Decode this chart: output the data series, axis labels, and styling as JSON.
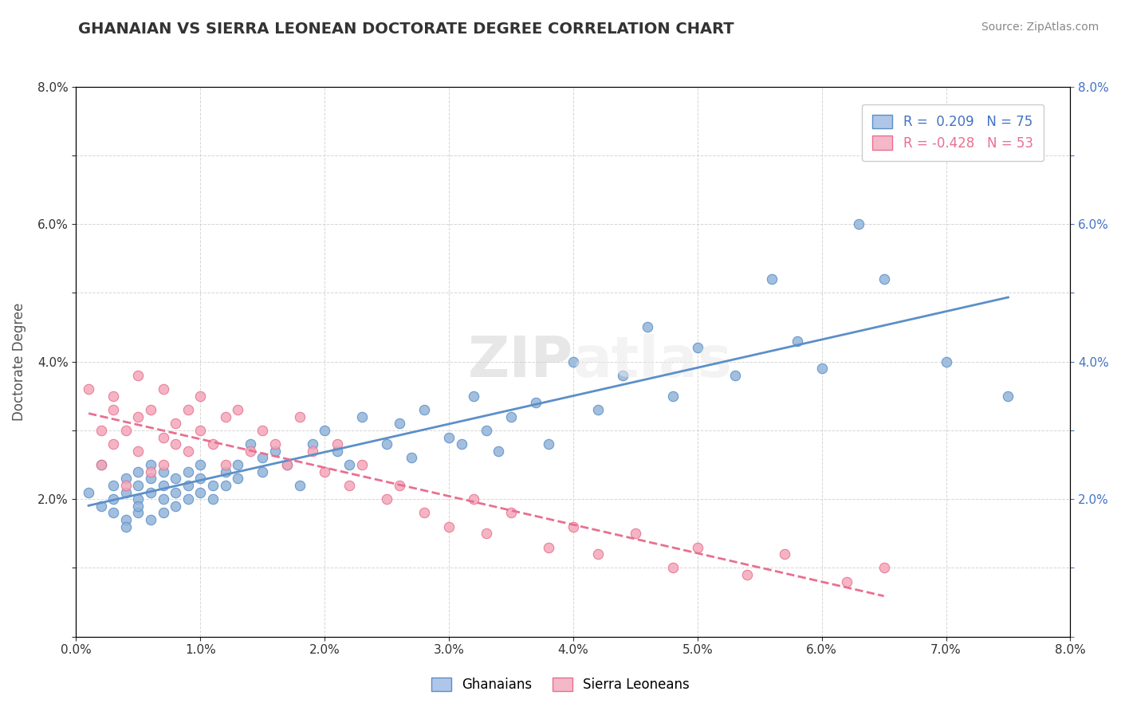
{
  "title": "GHANAIAN VS SIERRA LEONEAN DOCTORATE DEGREE CORRELATION CHART",
  "source": "Source: ZipAtlas.com",
  "ylabel": "Doctorate Degree",
  "xlim": [
    0.0,
    0.08
  ],
  "ylim": [
    0.0,
    0.08
  ],
  "ghanaian_R": 0.209,
  "ghanaian_N": 75,
  "sierralone_R": -0.428,
  "sierralone_N": 53,
  "blue_color": "#92b4d9",
  "pink_color": "#f4a7b9",
  "blue_line_color": "#5b8fc9",
  "pink_line_color": "#e87090",
  "background_color": "#ffffff",
  "grid_color": "#cccccc",
  "title_color": "#333333",
  "legend_R_color": "#4472c4",
  "legend_pink_R_color": "#e87090",
  "ghanaian_x": [
    0.001,
    0.002,
    0.002,
    0.003,
    0.003,
    0.003,
    0.004,
    0.004,
    0.004,
    0.004,
    0.005,
    0.005,
    0.005,
    0.005,
    0.005,
    0.006,
    0.006,
    0.006,
    0.006,
    0.007,
    0.007,
    0.007,
    0.007,
    0.008,
    0.008,
    0.008,
    0.009,
    0.009,
    0.009,
    0.01,
    0.01,
    0.01,
    0.011,
    0.011,
    0.012,
    0.012,
    0.013,
    0.013,
    0.014,
    0.015,
    0.015,
    0.016,
    0.017,
    0.018,
    0.019,
    0.02,
    0.021,
    0.022,
    0.023,
    0.025,
    0.026,
    0.027,
    0.028,
    0.03,
    0.031,
    0.032,
    0.033,
    0.034,
    0.035,
    0.037,
    0.038,
    0.04,
    0.042,
    0.044,
    0.046,
    0.048,
    0.05,
    0.053,
    0.056,
    0.058,
    0.06,
    0.063,
    0.065,
    0.07,
    0.075
  ],
  "ghanaian_y": [
    0.021,
    0.025,
    0.019,
    0.022,
    0.018,
    0.02,
    0.023,
    0.017,
    0.021,
    0.016,
    0.024,
    0.02,
    0.018,
    0.022,
    0.019,
    0.025,
    0.021,
    0.017,
    0.023,
    0.022,
    0.02,
    0.018,
    0.024,
    0.023,
    0.019,
    0.021,
    0.024,
    0.02,
    0.022,
    0.023,
    0.021,
    0.025,
    0.022,
    0.02,
    0.024,
    0.022,
    0.025,
    0.023,
    0.028,
    0.026,
    0.024,
    0.027,
    0.025,
    0.022,
    0.028,
    0.03,
    0.027,
    0.025,
    0.032,
    0.028,
    0.031,
    0.026,
    0.033,
    0.029,
    0.028,
    0.035,
    0.03,
    0.027,
    0.032,
    0.034,
    0.028,
    0.04,
    0.033,
    0.038,
    0.045,
    0.035,
    0.042,
    0.038,
    0.052,
    0.043,
    0.039,
    0.06,
    0.052,
    0.04,
    0.035
  ],
  "sierralone_x": [
    0.001,
    0.002,
    0.002,
    0.003,
    0.003,
    0.003,
    0.004,
    0.004,
    0.005,
    0.005,
    0.005,
    0.006,
    0.006,
    0.007,
    0.007,
    0.007,
    0.008,
    0.008,
    0.009,
    0.009,
    0.01,
    0.01,
    0.011,
    0.012,
    0.012,
    0.013,
    0.014,
    0.015,
    0.016,
    0.017,
    0.018,
    0.019,
    0.02,
    0.021,
    0.022,
    0.023,
    0.025,
    0.026,
    0.028,
    0.03,
    0.032,
    0.033,
    0.035,
    0.038,
    0.04,
    0.042,
    0.045,
    0.048,
    0.05,
    0.054,
    0.057,
    0.062,
    0.065
  ],
  "sierralone_y": [
    0.036,
    0.025,
    0.03,
    0.033,
    0.028,
    0.035,
    0.03,
    0.022,
    0.032,
    0.027,
    0.038,
    0.033,
    0.024,
    0.029,
    0.036,
    0.025,
    0.031,
    0.028,
    0.033,
    0.027,
    0.03,
    0.035,
    0.028,
    0.032,
    0.025,
    0.033,
    0.027,
    0.03,
    0.028,
    0.025,
    0.032,
    0.027,
    0.024,
    0.028,
    0.022,
    0.025,
    0.02,
    0.022,
    0.018,
    0.016,
    0.02,
    0.015,
    0.018,
    0.013,
    0.016,
    0.012,
    0.015,
    0.01,
    0.013,
    0.009,
    0.012,
    0.008,
    0.01
  ],
  "legend_blue_face": "#aec6e8",
  "legend_pink_face": "#f4b8c8"
}
